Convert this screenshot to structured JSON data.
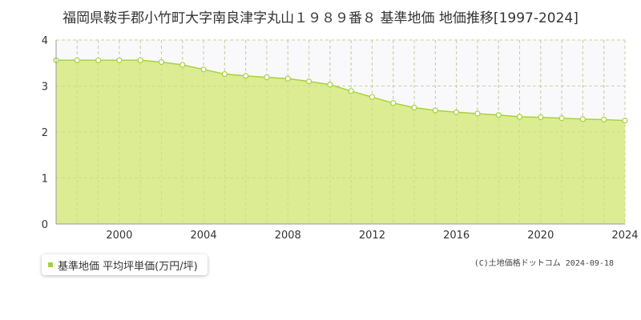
{
  "colors": {
    "area_fill": "#dcec93",
    "line": "#a8d23c",
    "marker": "#a6d33a",
    "grid": "#cccccc",
    "plot_upper_bg": "#f9f9fb",
    "axis": "#999999"
  },
  "legend": {
    "label": "基準地価 平均坪単価(万円/坪)"
  },
  "copyright": {
    "text": "(C)土地価格ドットコム 2024-09-18"
  },
  "chart_data": {
    "type": "area",
    "title": "福岡県鞍手郡小竹町大字南良津字丸山１９８９番８ 基準地価 地価推移[1997-2024]",
    "xlabel": "",
    "ylabel": "",
    "xlim": [
      1997,
      2024
    ],
    "ylim": [
      0,
      4
    ],
    "yticks": [
      0,
      1,
      2,
      3,
      4
    ],
    "ytick_labels": [
      "0",
      "1",
      "2",
      "3",
      "4"
    ],
    "xticks": [
      2000,
      2004,
      2008,
      2012,
      2016,
      2020,
      2024
    ],
    "xtick_labels": [
      "2000",
      "2004",
      "2008",
      "2012",
      "2016",
      "2020",
      "2024"
    ],
    "grid": true,
    "legend_position": "bottom-left",
    "series": [
      {
        "name": "基準地価 平均坪単価(万円/坪)",
        "x": [
          1997,
          1998,
          1999,
          2000,
          2001,
          2002,
          2003,
          2004,
          2005,
          2006,
          2007,
          2008,
          2009,
          2010,
          2011,
          2012,
          2013,
          2014,
          2015,
          2016,
          2017,
          2018,
          2019,
          2020,
          2021,
          2022,
          2023,
          2024
        ],
        "values": [
          3.56,
          3.56,
          3.56,
          3.56,
          3.56,
          3.52,
          3.46,
          3.36,
          3.26,
          3.22,
          3.19,
          3.16,
          3.1,
          3.03,
          2.89,
          2.76,
          2.63,
          2.53,
          2.47,
          2.43,
          2.4,
          2.37,
          2.33,
          2.32,
          2.3,
          2.28,
          2.27,
          2.25
        ]
      }
    ]
  }
}
